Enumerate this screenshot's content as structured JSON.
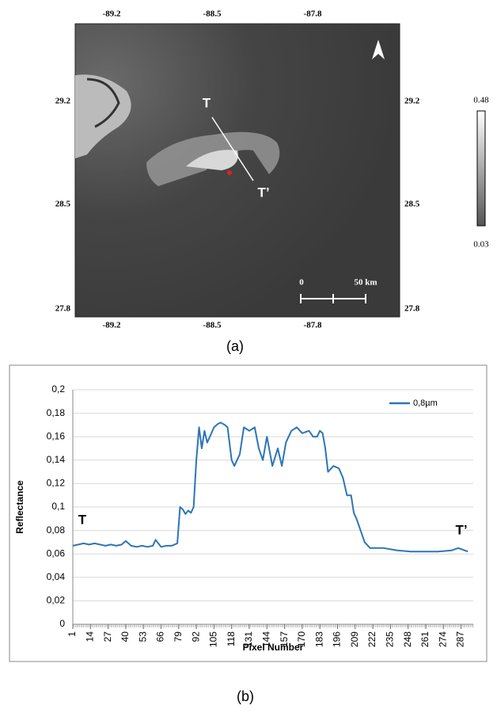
{
  "panel_a": {
    "lon_ticks": [
      -89.2,
      -88.5,
      -87.8
    ],
    "lat_ticks": [
      29.2,
      28.5,
      27.8
    ],
    "colorbar": {
      "max": 0.48,
      "min": 0.03
    },
    "transect_start": "T",
    "transect_end": "T’",
    "scale_bar": {
      "start": "0",
      "end": "50 km"
    },
    "caption": "(a)"
  },
  "chart_data": {
    "type": "line",
    "caption": "(b)",
    "x_label": "Pixel Number",
    "y_label": "Reflectance",
    "annotations": [
      "T",
      "T’"
    ],
    "x": [
      1,
      5,
      9,
      13,
      17,
      21,
      25,
      29,
      33,
      37,
      40,
      44,
      48,
      52,
      56,
      60,
      62,
      66,
      70,
      74,
      78,
      80,
      82,
      84,
      86,
      88,
      90,
      92,
      94,
      96,
      98,
      100,
      102,
      105,
      108,
      110,
      113,
      115,
      118,
      120,
      124,
      127,
      131,
      135,
      138,
      141,
      144,
      148,
      152,
      155,
      158,
      162,
      166,
      170,
      175,
      178,
      181,
      183,
      185,
      187,
      189,
      193,
      197,
      200,
      203,
      206,
      208,
      210,
      213,
      216,
      220,
      230,
      240,
      250,
      260,
      270,
      280,
      285,
      292
    ],
    "series": [
      {
        "name": "0,8µm",
        "color": "#2e75b6",
        "values": [
          0.067,
          0.068,
          0.069,
          0.068,
          0.069,
          0.068,
          0.067,
          0.068,
          0.067,
          0.068,
          0.071,
          0.067,
          0.066,
          0.067,
          0.066,
          0.067,
          0.072,
          0.066,
          0.067,
          0.067,
          0.069,
          0.1,
          0.098,
          0.094,
          0.097,
          0.095,
          0.1,
          0.14,
          0.168,
          0.15,
          0.165,
          0.155,
          0.16,
          0.168,
          0.171,
          0.172,
          0.17,
          0.168,
          0.14,
          0.135,
          0.145,
          0.168,
          0.165,
          0.168,
          0.15,
          0.14,
          0.16,
          0.135,
          0.15,
          0.135,
          0.155,
          0.165,
          0.168,
          0.163,
          0.165,
          0.16,
          0.16,
          0.165,
          0.163,
          0.15,
          0.13,
          0.135,
          0.133,
          0.125,
          0.11,
          0.11,
          0.095,
          0.09,
          0.08,
          0.07,
          0.065,
          0.065,
          0.063,
          0.062,
          0.062,
          0.062,
          0.063,
          0.065,
          0.062
        ]
      }
    ],
    "xlim": [
      1,
      296
    ],
    "xticks": [
      1,
      14,
      27,
      40,
      53,
      66,
      79,
      92,
      105,
      118,
      131,
      144,
      157,
      170,
      183,
      196,
      209,
      222,
      235,
      248,
      261,
      274,
      287
    ],
    "ylim": [
      0,
      0.2
    ],
    "yticks": [
      0,
      {
        "value": 0.02,
        "label": "0,02"
      },
      {
        "value": 0.04,
        "label": "0,04"
      },
      {
        "value": 0.06,
        "label": "0,06"
      },
      {
        "value": 0.08,
        "label": "0,08"
      },
      {
        "value": 0.1,
        "label": "0,1"
      },
      {
        "value": 0.12,
        "label": "0,12"
      },
      {
        "value": 0.14,
        "label": "0,14"
      },
      {
        "value": 0.16,
        "label": "0,16"
      },
      {
        "value": 0.18,
        "label": "0,18"
      },
      {
        "value": 0.2,
        "label": "0,2"
      }
    ],
    "grid": true,
    "legend": "top-right"
  }
}
